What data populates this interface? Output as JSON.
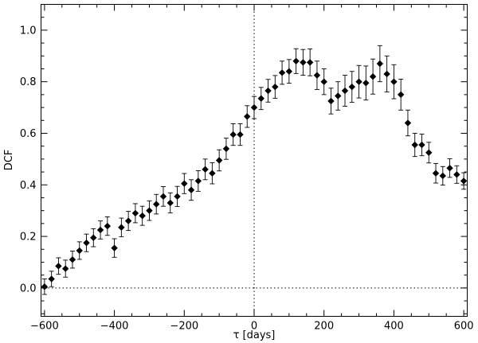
{
  "chart_data": {
    "type": "scatter",
    "title": "",
    "xlabel": "τ [days]",
    "ylabel": "DCF",
    "xlim": [
      -610,
      610
    ],
    "ylim": [
      -0.11,
      1.1
    ],
    "xticks": [
      -600,
      -400,
      -200,
      0,
      200,
      400,
      600
    ],
    "xtick_labels": [
      "−600",
      "−400",
      "−200",
      "0",
      "200",
      "400",
      "600"
    ],
    "yticks": [
      0.0,
      0.2,
      0.4,
      0.6,
      0.8,
      1.0
    ],
    "ytick_labels": [
      "0.0",
      "0.2",
      "0.4",
      "0.6",
      "0.8",
      "1.0"
    ],
    "reference_lines": {
      "x": 0,
      "y": 0,
      "style": "dotted"
    },
    "marker": "filled-diamond",
    "color": "#000000",
    "series": [
      {
        "x": [
          -600,
          -580,
          -560,
          -540,
          -520,
          -500,
          -480,
          -460,
          -440,
          -420,
          -400,
          -380,
          -360,
          -340,
          -320,
          -300,
          -280,
          -260,
          -240,
          -220,
          -200,
          -180,
          -160,
          -140,
          -120,
          -100,
          -80,
          -60,
          -40,
          -20,
          0,
          20,
          40,
          60,
          80,
          100,
          120,
          140,
          160,
          180,
          200,
          220,
          240,
          260,
          280,
          300,
          320,
          340,
          360,
          380,
          400,
          420,
          440,
          460,
          480,
          500,
          520,
          540,
          560,
          580,
          600
        ],
        "y": [
          0.005,
          0.035,
          0.085,
          0.075,
          0.11,
          0.145,
          0.175,
          0.195,
          0.225,
          0.24,
          0.155,
          0.235,
          0.26,
          0.29,
          0.28,
          0.3,
          0.325,
          0.355,
          0.33,
          0.355,
          0.405,
          0.38,
          0.415,
          0.46,
          0.445,
          0.495,
          0.54,
          0.595,
          0.595,
          0.665,
          0.7,
          0.735,
          0.765,
          0.78,
          0.835,
          0.84,
          0.88,
          0.875,
          0.875,
          0.825,
          0.8,
          0.725,
          0.745,
          0.765,
          0.78,
          0.8,
          0.795,
          0.82,
          0.87,
          0.83,
          0.8,
          0.75,
          0.64,
          0.555,
          0.555,
          0.525,
          0.445,
          0.435,
          0.465,
          0.44,
          0.415
        ],
        "yerr": [
          0.03,
          0.03,
          0.032,
          0.033,
          0.033,
          0.034,
          0.034,
          0.035,
          0.035,
          0.036,
          0.036,
          0.036,
          0.037,
          0.037,
          0.037,
          0.038,
          0.038,
          0.038,
          0.039,
          0.039,
          0.039,
          0.04,
          0.04,
          0.04,
          0.041,
          0.041,
          0.041,
          0.042,
          0.042,
          0.042,
          0.043,
          0.043,
          0.044,
          0.044,
          0.045,
          0.046,
          0.048,
          0.05,
          0.052,
          0.055,
          0.05,
          0.05,
          0.055,
          0.06,
          0.06,
          0.063,
          0.066,
          0.068,
          0.07,
          0.07,
          0.066,
          0.06,
          0.05,
          0.045,
          0.042,
          0.04,
          0.038,
          0.036,
          0.036,
          0.034,
          0.032
        ]
      }
    ]
  }
}
